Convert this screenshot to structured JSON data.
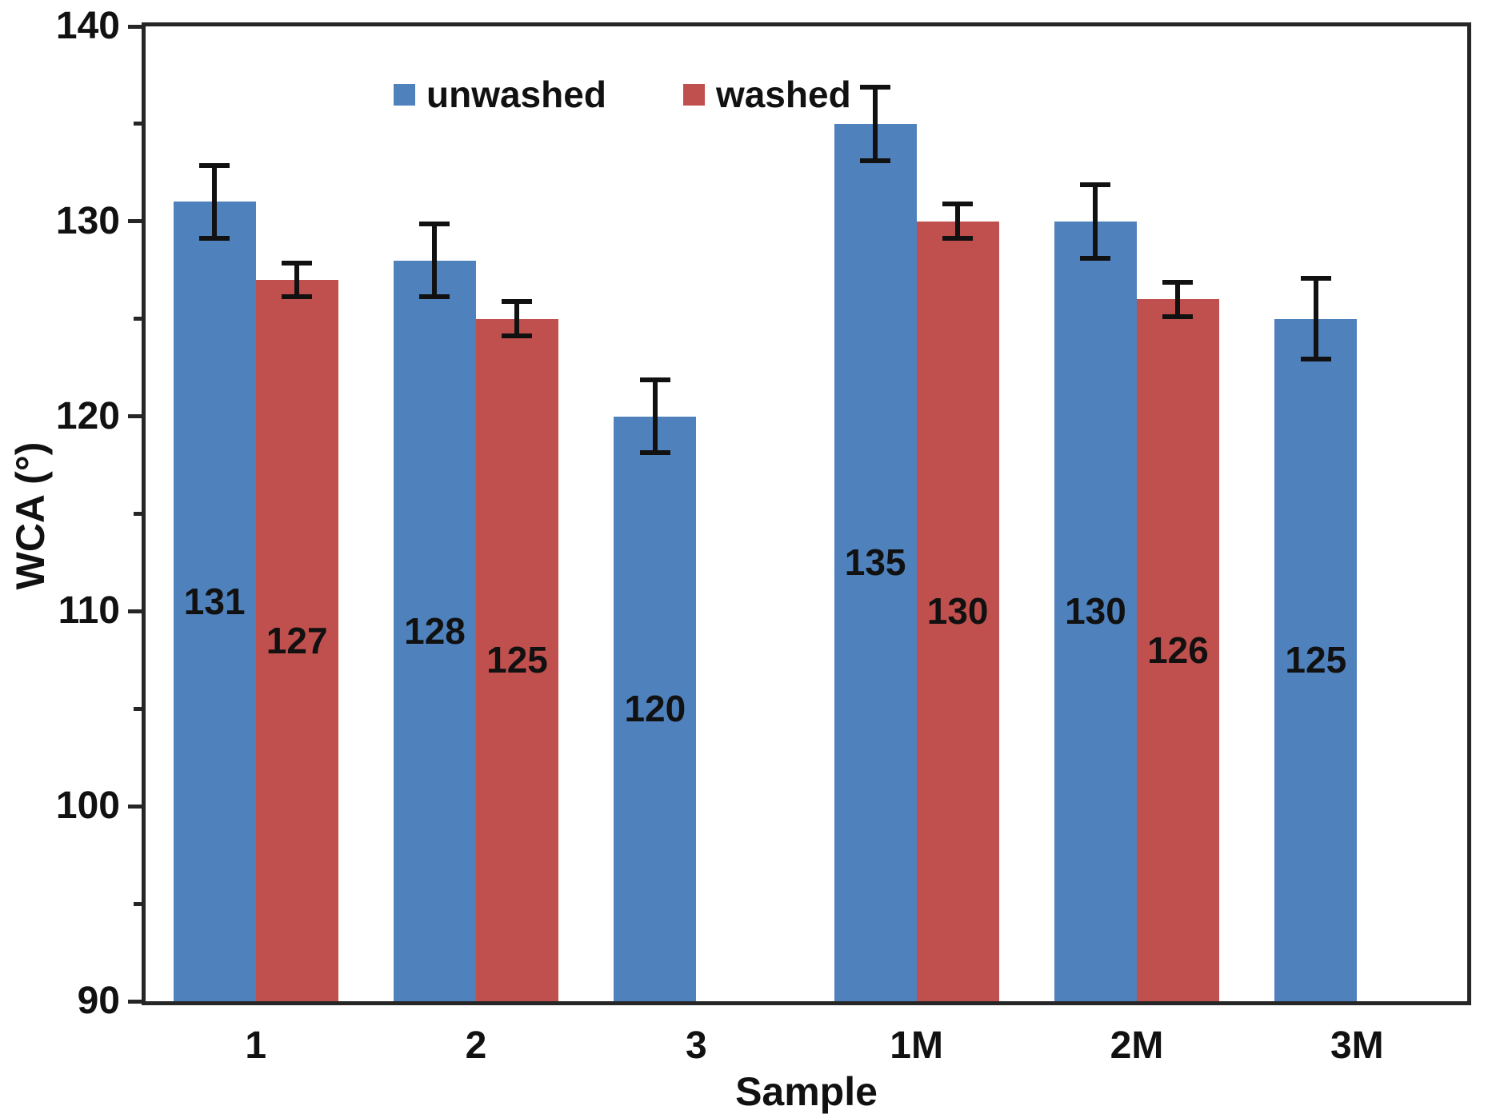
{
  "chart_data": {
    "type": "bar",
    "title": "",
    "xlabel": "Sample",
    "ylabel": "WCA (°)",
    "categories": [
      "1",
      "2",
      "3",
      "1M",
      "2M",
      "3M"
    ],
    "series": [
      {
        "name": "unwashed",
        "color": "#4F81BD",
        "values": [
          131,
          128,
          120,
          135,
          130,
          125
        ],
        "errors": [
          2,
          2,
          2,
          2,
          2,
          2.2
        ]
      },
      {
        "name": "washed",
        "color": "#C0504D",
        "values": [
          127,
          125,
          null,
          130,
          126,
          null
        ],
        "errors": [
          1,
          1,
          null,
          1,
          1,
          null
        ]
      }
    ],
    "ylim": [
      90,
      140
    ],
    "ytick_step": 10,
    "yminor_step": 5,
    "yticks": [
      90,
      100,
      110,
      120,
      130,
      140
    ],
    "bar_value_labels": true,
    "error_bars": true,
    "grid": false,
    "legend_position": "top-left-inside",
    "axis_color": "#262626",
    "text_color": "#111111"
  }
}
